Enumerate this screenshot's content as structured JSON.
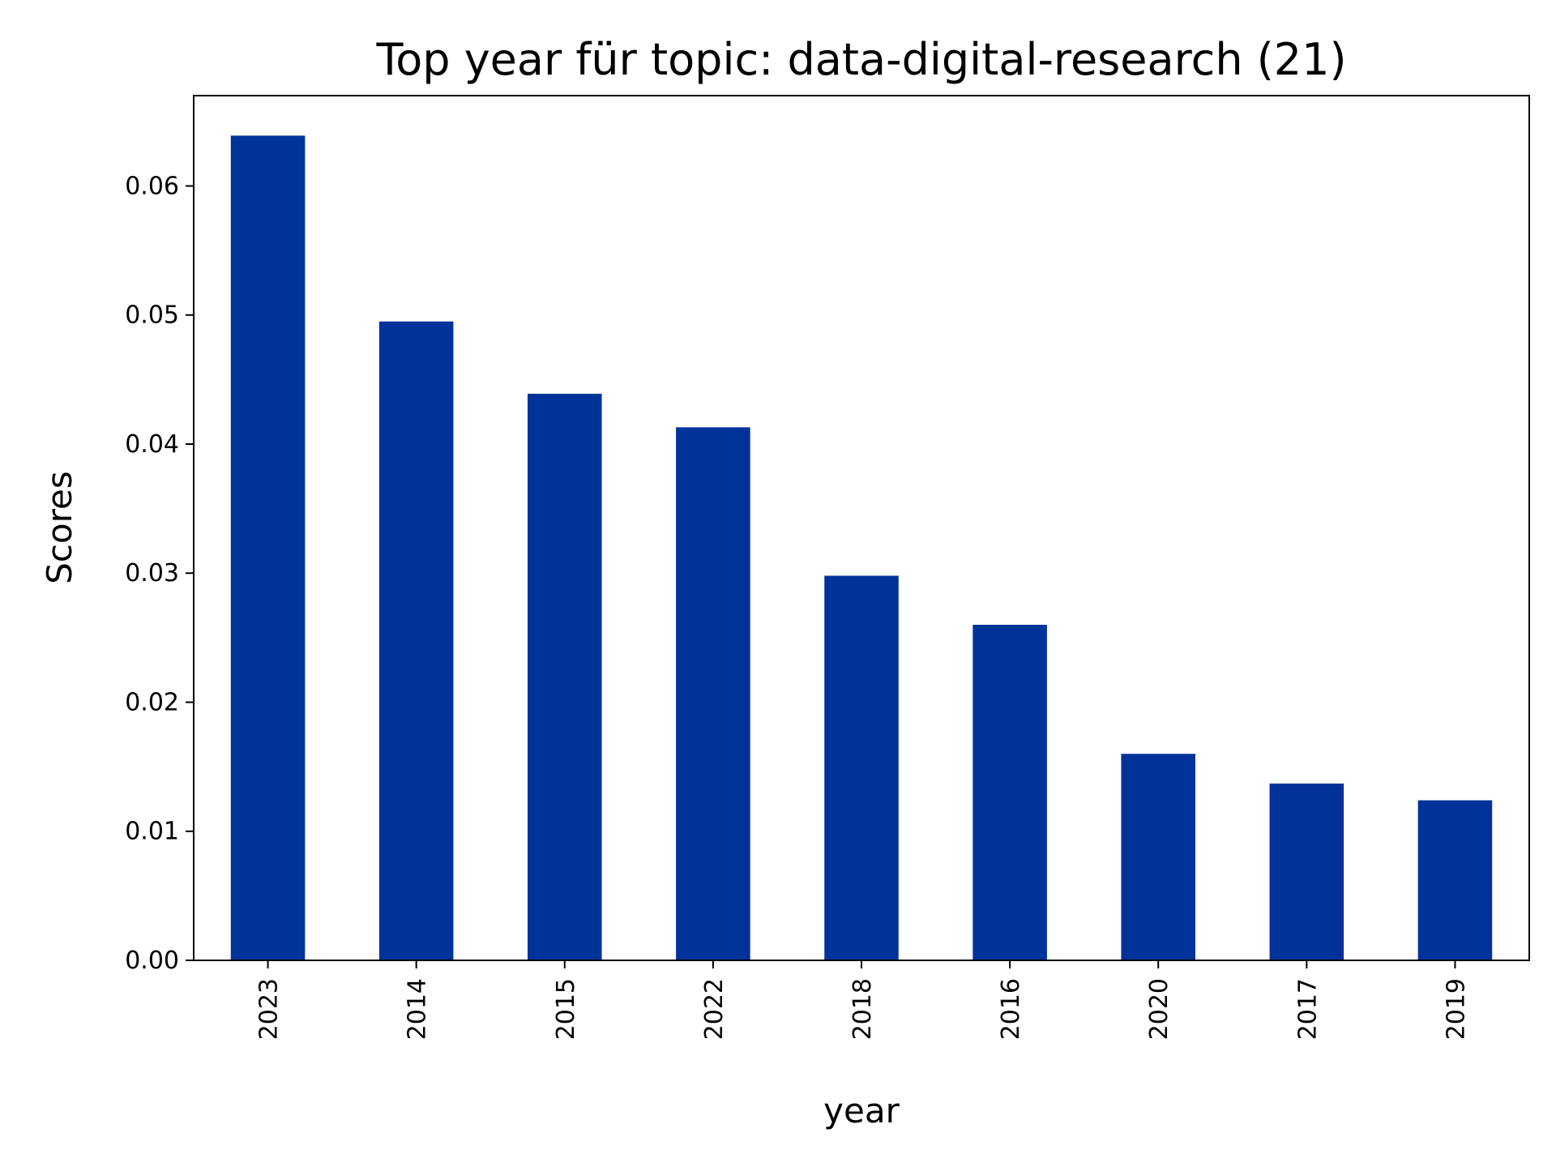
{
  "chart_data": {
    "type": "bar",
    "title": "Top year für topic: data-digital-research (21)",
    "xlabel": "year",
    "ylabel": "Scores",
    "categories": [
      "2023",
      "2014",
      "2015",
      "2022",
      "2018",
      "2016",
      "2020",
      "2017",
      "2019"
    ],
    "values": [
      0.0639,
      0.0495,
      0.0439,
      0.0413,
      0.0298,
      0.026,
      0.016,
      0.0137,
      0.0124
    ],
    "ylim": [
      0,
      0.067
    ],
    "yticks": [
      0.0,
      0.01,
      0.02,
      0.03,
      0.04,
      0.05,
      0.06
    ],
    "ytick_labels": [
      "0.00",
      "0.01",
      "0.02",
      "0.03",
      "0.04",
      "0.05",
      "0.06"
    ],
    "bar_color": "#003399",
    "grid": false,
    "legend": "none"
  }
}
